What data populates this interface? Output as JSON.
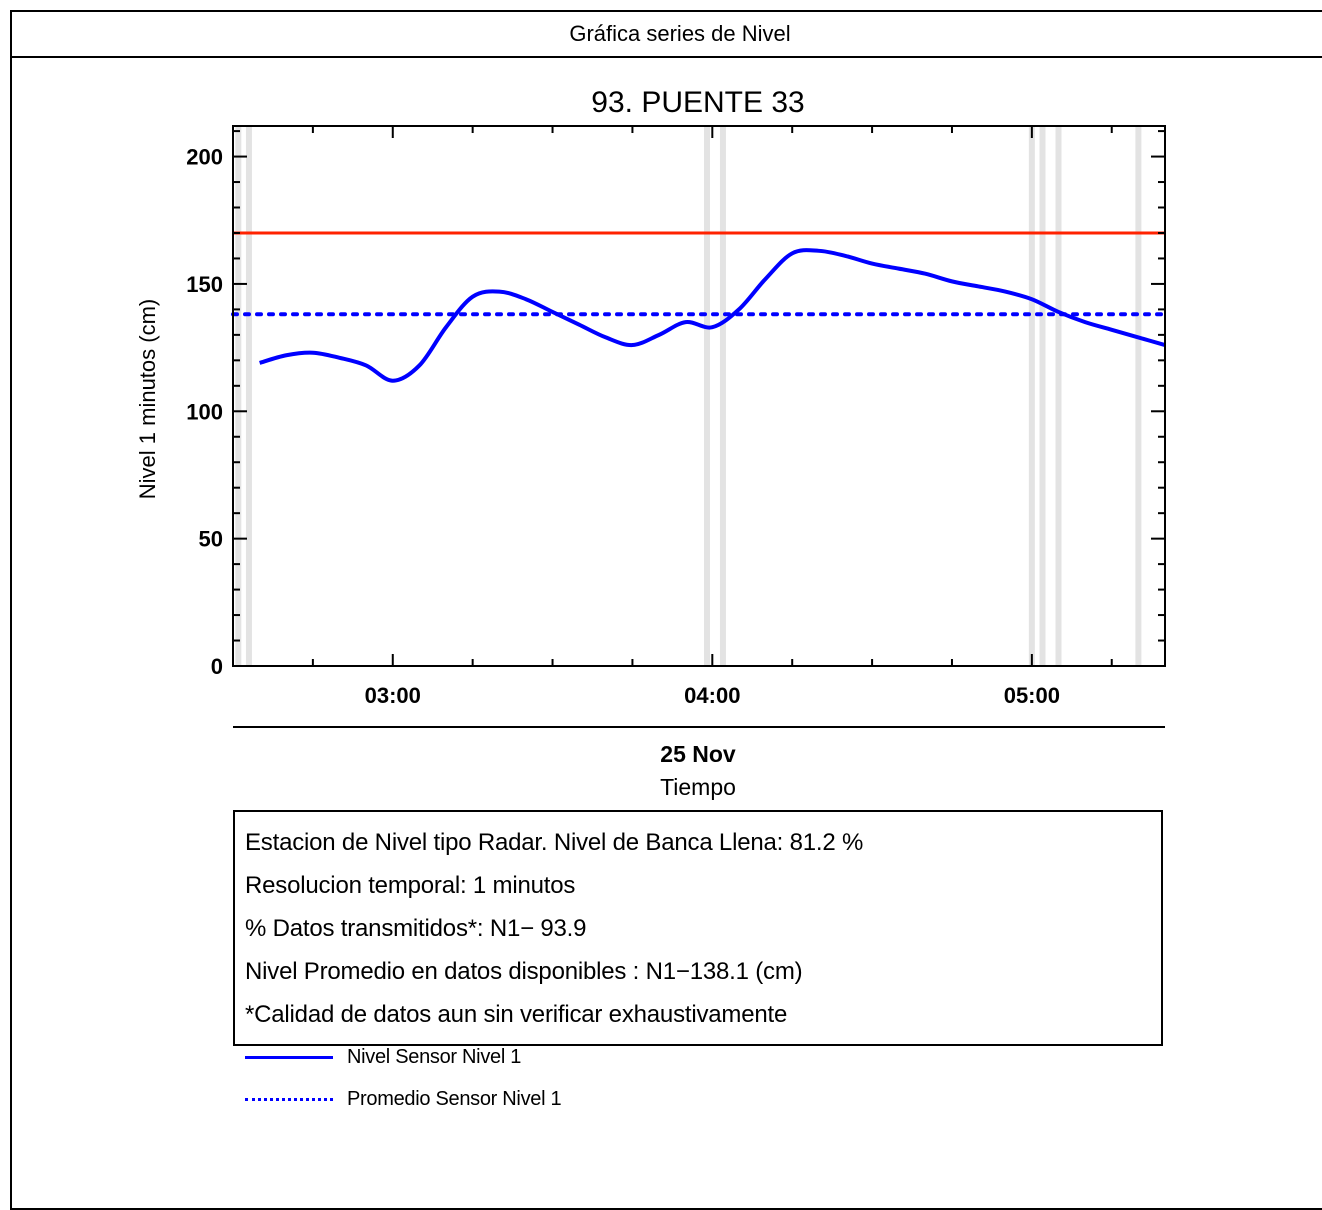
{
  "header": {
    "title": "Gráfica series de Nivel"
  },
  "chart_data": {
    "type": "line",
    "title": "93. PUENTE 33",
    "ylabel": "Nivel 1 minutos (cm)",
    "xlabel": "Tiempo",
    "date_label": "25 Nov",
    "xlim": [
      "02:30",
      "05:25"
    ],
    "ylim": [
      0,
      212
    ],
    "y_ticks": [
      0,
      50,
      100,
      150,
      200
    ],
    "x_ticks": [
      "03:00",
      "04:00",
      "05:00"
    ],
    "grid": false,
    "series": [
      {
        "name": "Nivel Sensor Nivel 1",
        "color": "#0000ff",
        "style": "solid",
        "x": [
          "02:35",
          "02:40",
          "02:45",
          "02:50",
          "02:55",
          "03:00",
          "03:05",
          "03:10",
          "03:15",
          "03:20",
          "03:25",
          "03:30",
          "03:35",
          "03:40",
          "03:45",
          "03:50",
          "03:55",
          "04:00",
          "04:05",
          "04:10",
          "04:15",
          "04:20",
          "04:25",
          "04:30",
          "04:35",
          "04:40",
          "04:45",
          "04:50",
          "04:55",
          "05:00",
          "05:05",
          "05:10",
          "05:15",
          "05:20",
          "05:25"
        ],
        "values": [
          119,
          122,
          123,
          121,
          118,
          112,
          118,
          133,
          145,
          147,
          144,
          139,
          134,
          129,
          126,
          130,
          135,
          133,
          140,
          152,
          162,
          163,
          161,
          158,
          156,
          154,
          151,
          149,
          147,
          144,
          139,
          135,
          132,
          129,
          126
        ]
      },
      {
        "name": "Promedio Sensor Nivel 1",
        "color": "#0000ff",
        "style": "dotted",
        "value": 138.1
      },
      {
        "name": "Nivel de Banca Llena",
        "color": "#ff2200",
        "style": "solid",
        "value": 170
      }
    ],
    "missing_data_times": [
      "02:31",
      "02:33",
      "03:59",
      "04:02",
      "05:00",
      "05:02",
      "05:05",
      "05:20"
    ],
    "missing_data_color": "#e3e3e3"
  },
  "info": {
    "lines": [
      "Estacion de Nivel tipo Radar. Nivel de Banca Llena: 81.2 %",
      "Resolucion temporal: 1 minutos",
      "% Datos transmitidos*: N1− 93.9",
      "Nivel Promedio en datos disponibles : N1−138.1 (cm)",
      "*Calidad de datos aun sin verificar exhaustivamente"
    ],
    "legend": [
      {
        "label": "Nivel Sensor Nivel 1",
        "color": "#0000ff",
        "style": "solid"
      },
      {
        "label": "Promedio Sensor Nivel 1",
        "color": "#0000ff",
        "style": "dotted"
      }
    ]
  }
}
